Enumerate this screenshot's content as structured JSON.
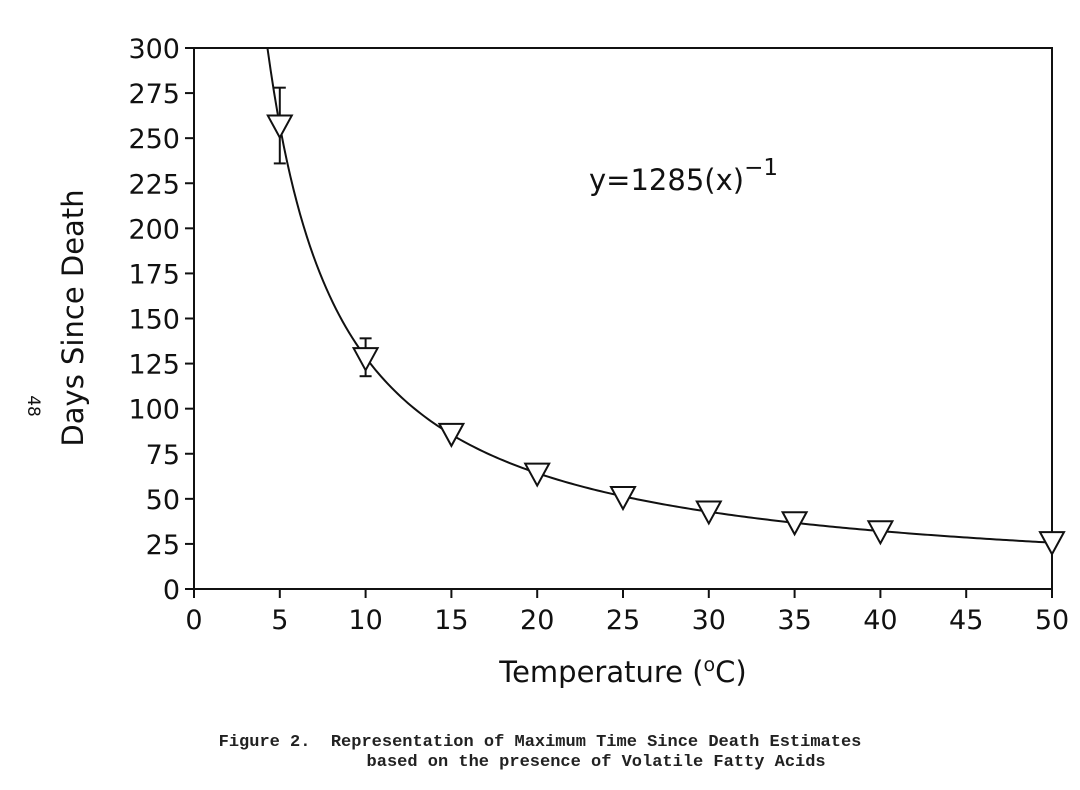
{
  "page_number": "48",
  "caption": {
    "line1": "Figure 2.  Representation of Maximum Time Since Death Estimates",
    "line2": "           based on the presence of Volatile Fatty Acids"
  },
  "chart_data": {
    "type": "line",
    "title": "",
    "xlabel": "Temperature (°C)",
    "ylabel": "Days Since Death",
    "xlim": [
      0,
      50
    ],
    "ylim": [
      0,
      300
    ],
    "x_ticks": [
      0,
      5,
      10,
      15,
      20,
      25,
      30,
      35,
      40,
      45,
      50
    ],
    "y_ticks": [
      0,
      25,
      50,
      75,
      100,
      125,
      150,
      175,
      200,
      225,
      250,
      275,
      300
    ],
    "grid": false,
    "legend": "none",
    "annotation": {
      "equation_base": "y=1285(x)",
      "equation_exponent": "−1"
    },
    "series": [
      {
        "marker": "triangle-down",
        "x": [
          5,
          10,
          15,
          20,
          25,
          30,
          35,
          40,
          50
        ],
        "y": [
          257,
          128,
          86,
          64,
          51,
          43,
          37,
          32,
          26
        ],
        "error_high": [
          278,
          139,
          null,
          null,
          null,
          null,
          null,
          null,
          null
        ],
        "error_low": [
          236,
          118,
          null,
          null,
          null,
          null,
          null,
          null,
          null
        ]
      }
    ],
    "curve_function": {
      "coefficient": 1285,
      "power": -1,
      "x_start": 4.28,
      "x_end": 50
    }
  }
}
